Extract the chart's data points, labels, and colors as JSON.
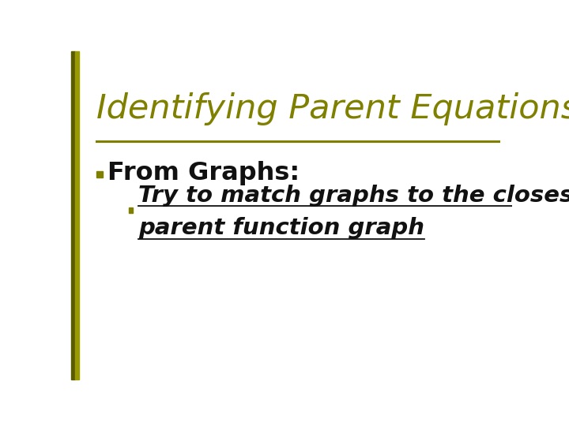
{
  "title": "Identifying Parent Equations",
  "title_color": "#808000",
  "title_fontsize": 31,
  "background_color": "#ffffff",
  "separator_color": "#808000",
  "bullet1_text": "From Graphs:",
  "bullet1_fontsize": 23,
  "bullet1_marker_color": "#808000",
  "bullet2_line1": "Try to match graphs to the closest",
  "bullet2_line2": "parent function graph",
  "bullet2_color": "#111111",
  "bullet2_fontsize": 21,
  "bullet2_marker_color": "#808000",
  "left_bar_color_dark": "#5a5a00",
  "left_bar_color_light": "#999900"
}
